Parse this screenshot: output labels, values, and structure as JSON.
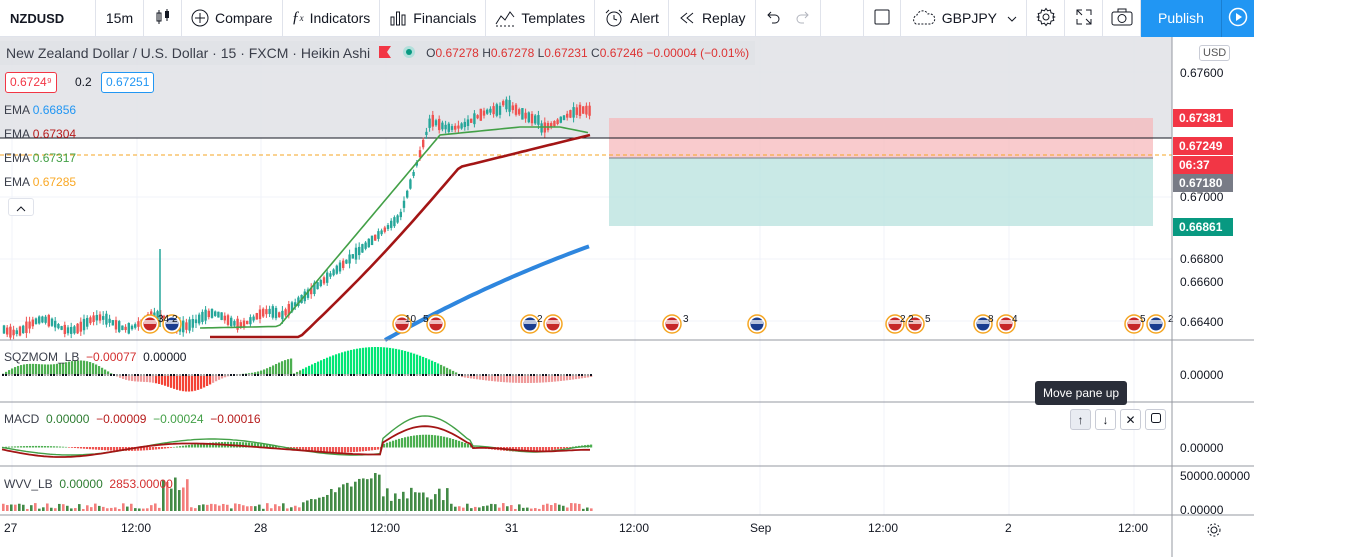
{
  "toolbar": {
    "symbol": "NZDUSD",
    "interval": "15m",
    "compare": "Compare",
    "indicators": "Indicators",
    "financials": "Financials",
    "templates": "Templates",
    "alert": "Alert",
    "replay": "Replay",
    "layout_symbol": "GBPJPY",
    "publish": "Publish"
  },
  "legend": {
    "title": "New Zealand Dollar / U.S. Dollar · 15 · FXCM · Heikin Ashi",
    "open_label": "O",
    "open": "0.67278",
    "high_label": "H",
    "high": "0.67278",
    "low_label": "L",
    "low": "0.67231",
    "close_label": "C",
    "close": "0.67246",
    "change": "−0.00004 (−0.01%)",
    "bid": "0.6724⁹",
    "spread": "0.2",
    "ask": "0.67251",
    "ema": [
      {
        "label": "EMA",
        "value": "0.66856",
        "color": "#2196f3"
      },
      {
        "label": "EMA",
        "value": "0.67304",
        "color": "#b71c1c"
      },
      {
        "label": "EMA",
        "value": "0.67317",
        "color": "#43a047"
      },
      {
        "label": "EMA",
        "value": "0.67285",
        "color": "#f9a825"
      }
    ]
  },
  "price_axis": {
    "currency": "USD",
    "ticks": [
      "0.67600",
      "0.67000",
      "0.66800",
      "0.66600",
      "0.66400"
    ],
    "tags": [
      {
        "value": "0.67381",
        "color": "#f23645"
      },
      {
        "value": "0.67249",
        "color": "#f23645"
      },
      {
        "value": "06:37",
        "color": "#f23645"
      },
      {
        "value": "0.67180",
        "color": "#787b86"
      },
      {
        "value": "0.66861",
        "color": "#089981"
      }
    ]
  },
  "events": [
    "34",
    "2",
    "10",
    "5",
    "2",
    "3",
    "2",
    "2",
    "5",
    "8",
    "4",
    "5",
    "2"
  ],
  "sqzmom": {
    "name": "SQZMOM_LB",
    "v1": "−0.00077",
    "v2": "0.00000",
    "tick": "0.00000"
  },
  "macd": {
    "name": "MACD",
    "v1": "0.00000",
    "v2": "−0.00009",
    "v3": "−0.00024",
    "v4": "−0.00016",
    "tick": "0.00000"
  },
  "wvv": {
    "name": "WVV_LB",
    "v1": "0.00000",
    "v2": "2853.00000",
    "tick_top": "50000.00000",
    "tick_bottom": "0.00000"
  },
  "time_axis": [
    "27",
    "12:00",
    "28",
    "12:00",
    "31",
    "12:00",
    "Sep",
    "12:00",
    "2",
    "12:00"
  ],
  "tooltip": "Move pane up"
}
